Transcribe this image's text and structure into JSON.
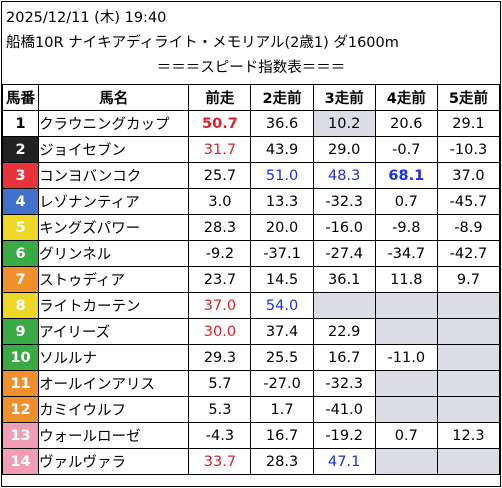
{
  "header": {
    "line1": "2025/12/11 (木) 19:40",
    "line2": "船橋10R ナイキアディライト・メモリアル(2歳1) ダ1600m",
    "subtitle": "＝＝＝スピード指数表＝＝＝"
  },
  "columns": [
    "馬番",
    "馬名",
    "前走",
    "2走前",
    "3走前",
    "4走前",
    "5走前"
  ],
  "rows": [
    {
      "no": "1",
      "frame": 1,
      "name": "クラウニングカップ",
      "v": [
        "50.7",
        "36.6",
        "10.2",
        "20.6",
        "29.1"
      ]
    },
    {
      "no": "2",
      "frame": 2,
      "name": "ジョイセブン",
      "v": [
        "31.7",
        "43.9",
        "29.0",
        "-0.7",
        "-10.3"
      ]
    },
    {
      "no": "3",
      "frame": 3,
      "name": "コンヨバンコク",
      "v": [
        "25.7",
        "51.0",
        "48.3",
        "68.1",
        "37.0"
      ]
    },
    {
      "no": "4",
      "frame": 4,
      "name": "レゾナンティア",
      "v": [
        "3.0",
        "13.3",
        "-32.3",
        "0.7",
        "-45.7"
      ]
    },
    {
      "no": "5",
      "frame": 5,
      "name": "キングズパワー",
      "v": [
        "28.3",
        "20.0",
        "-16.0",
        "-9.8",
        "-8.9"
      ]
    },
    {
      "no": "6",
      "frame": 6,
      "name": "グリンネル",
      "v": [
        "-9.2",
        "-37.1",
        "-27.4",
        "-34.7",
        "-42.7"
      ]
    },
    {
      "no": "7",
      "frame": 7,
      "name": "ストゥディア",
      "v": [
        "23.7",
        "14.5",
        "36.1",
        "11.8",
        "9.7"
      ]
    },
    {
      "no": "8",
      "frame": 7,
      "name": "ライトカーテン",
      "v": [
        "37.0",
        "54.0",
        "",
        "",
        ""
      ]
    },
    {
      "no": "9",
      "frame": 8,
      "name": "アイリーズ",
      "v": [
        "30.0",
        "37.4",
        "22.9",
        "",
        ""
      ]
    },
    {
      "no": "10",
      "frame": 8,
      "name": "ソルルナ",
      "v": [
        "29.3",
        "25.5",
        "16.7",
        "-11.0",
        ""
      ]
    },
    {
      "no": "11",
      "frame": 9,
      "name": "オールインアリス",
      "v": [
        "5.7",
        "-27.0",
        "-32.3",
        "",
        ""
      ]
    },
    {
      "no": "12",
      "frame": 9,
      "name": "カミイウルフ",
      "v": [
        "5.3",
        "1.7",
        "-41.0",
        "",
        ""
      ]
    },
    {
      "no": "13",
      "frame": 10,
      "name": "ウォールローゼ",
      "v": [
        "-4.3",
        "16.7",
        "-19.2",
        "0.7",
        "12.3"
      ]
    },
    {
      "no": "14",
      "frame": 10,
      "name": "ヴァルヴァラ",
      "v": [
        "33.7",
        "28.3",
        "47.1",
        "",
        ""
      ]
    }
  ],
  "frame_colors": {
    "1": "#ffffff",
    "2": "#222222",
    "3": "#e8333a",
    "4": "#3f72c8",
    "5": "#ecd626",
    "6": "#3aaa45",
    "7": "#f0902c",
    "8": "#f19db6"
  },
  "styles": {
    "red": "#e0202a",
    "blue": "#1a2ee8",
    "highlight": "#dcdce4"
  }
}
